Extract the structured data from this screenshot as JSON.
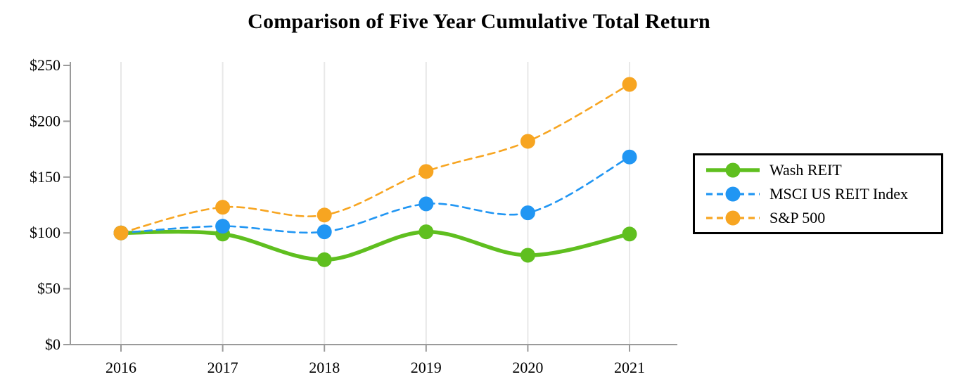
{
  "title": "Comparison of Five Year Cumulative Total Return",
  "chart_data": {
    "type": "line",
    "title": "Comparison of Five Year Cumulative Total Return",
    "x_labels": [
      "2016",
      "2017",
      "2018",
      "2019",
      "2020",
      "2021"
    ],
    "series": [
      {
        "name": "Wash REIT",
        "color": "#5fbf1f",
        "line_style": "solid",
        "values": [
          100,
          99,
          76,
          101,
          80,
          99
        ]
      },
      {
        "name": "MSCI US REIT Index",
        "color": "#2196f3",
        "line_style": "dashed",
        "values": [
          100,
          106,
          101,
          126,
          118,
          168
        ]
      },
      {
        "name": "S&P 500",
        "color": "#f7a521",
        "line_style": "dashed",
        "values": [
          100,
          123,
          116,
          155,
          182,
          233
        ]
      }
    ],
    "y_ticks": [
      {
        "value": 0,
        "label": "$0"
      },
      {
        "value": 50,
        "label": "$50"
      },
      {
        "value": 100,
        "label": "$100"
      },
      {
        "value": 150,
        "label": "$150"
      },
      {
        "value": 200,
        "label": "$200"
      },
      {
        "value": 250,
        "label": "$250"
      }
    ],
    "ylim": [
      0,
      250
    ],
    "grid": "vertical-only",
    "legend_position": "right"
  },
  "colors": {
    "axis": "#9a9a9a",
    "gridline": "#e8e8e8",
    "text": "#000000",
    "legend_border": "#000000",
    "background": "#ffffff"
  }
}
